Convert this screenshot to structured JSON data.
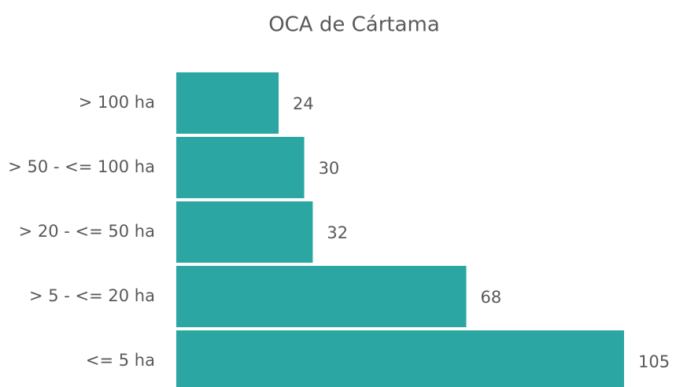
{
  "chart_data": {
    "type": "hbar",
    "title": "OCA de Cártama",
    "categories": [
      "> 100 ha",
      "> 50 - <= 100 ha",
      "> 20 - <= 50 ha",
      "> 5 - <= 20 ha",
      "<= 5 ha"
    ],
    "values": [
      24,
      30,
      32,
      68,
      105
    ],
    "color": "#2ba6a3"
  }
}
